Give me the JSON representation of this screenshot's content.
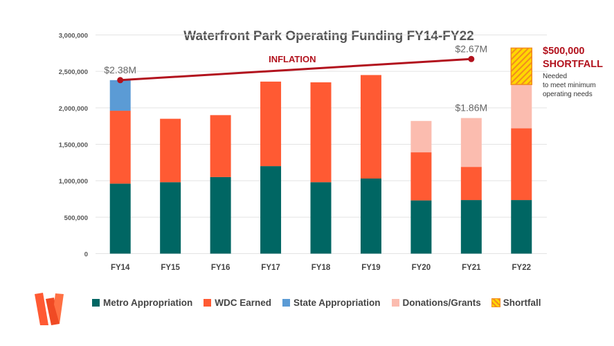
{
  "chart_data": {
    "type": "bar",
    "stacked": true,
    "title": "Waterfront Park Operating Funding FY14-FY22",
    "categories": [
      "FY14",
      "FY15",
      "FY16",
      "FY17",
      "FY18",
      "FY19",
      "FY20",
      "FY21",
      "FY22"
    ],
    "ylim": [
      0,
      3000000
    ],
    "yticks": [
      0,
      500000,
      1000000,
      1500000,
      2000000,
      2500000,
      3000000
    ],
    "ytick_labels": [
      "0",
      "500,000",
      "1,000,000",
      "1,500,000",
      "2,000,000",
      "2,500,000",
      "3,000,000"
    ],
    "grid": true,
    "legend_position": "bottom",
    "series": [
      {
        "name": "Metro Appropriation",
        "color": "#006663",
        "values": [
          960000,
          980000,
          1050000,
          1200000,
          980000,
          1030000,
          730000,
          735000,
          735000
        ]
      },
      {
        "name": "WDC Earned",
        "color": "#ff5a33",
        "values": [
          1000000,
          870000,
          850000,
          1160000,
          1370000,
          1420000,
          660000,
          455000,
          985000
        ]
      },
      {
        "name": "State Appropriation",
        "color": "#5b9bd5",
        "values": [
          420000,
          0,
          0,
          0,
          0,
          0,
          0,
          0,
          0
        ]
      },
      {
        "name": "Donations/Grants",
        "color": "#fbbcaf",
        "values": [
          0,
          0,
          0,
          0,
          0,
          0,
          430000,
          670000,
          600000
        ]
      },
      {
        "name": "Shortfall",
        "color": "#ffd700",
        "pattern": "hatched",
        "values": [
          0,
          0,
          0,
          0,
          0,
          0,
          0,
          0,
          500000
        ]
      }
    ],
    "inflation_line": {
      "label": "INFLATION",
      "color": "#b2121d",
      "points": [
        {
          "x": "FY14",
          "y": 2380000
        },
        {
          "x": "FY21",
          "y": 2670000
        }
      ]
    },
    "annotations": [
      {
        "text": "$2.38M",
        "x": "FY14",
        "y": 2380000
      },
      {
        "text": "$2.67M",
        "x": "FY21",
        "y": 2670000
      },
      {
        "text": "$1.86M",
        "x": "FY21",
        "y": 1860000
      }
    ],
    "shortfall_note": {
      "title1": "$500,000",
      "title2": "SHORTFALL",
      "line1": "Needed",
      "line2": "to meet minimum",
      "line3": "operating needs"
    }
  }
}
